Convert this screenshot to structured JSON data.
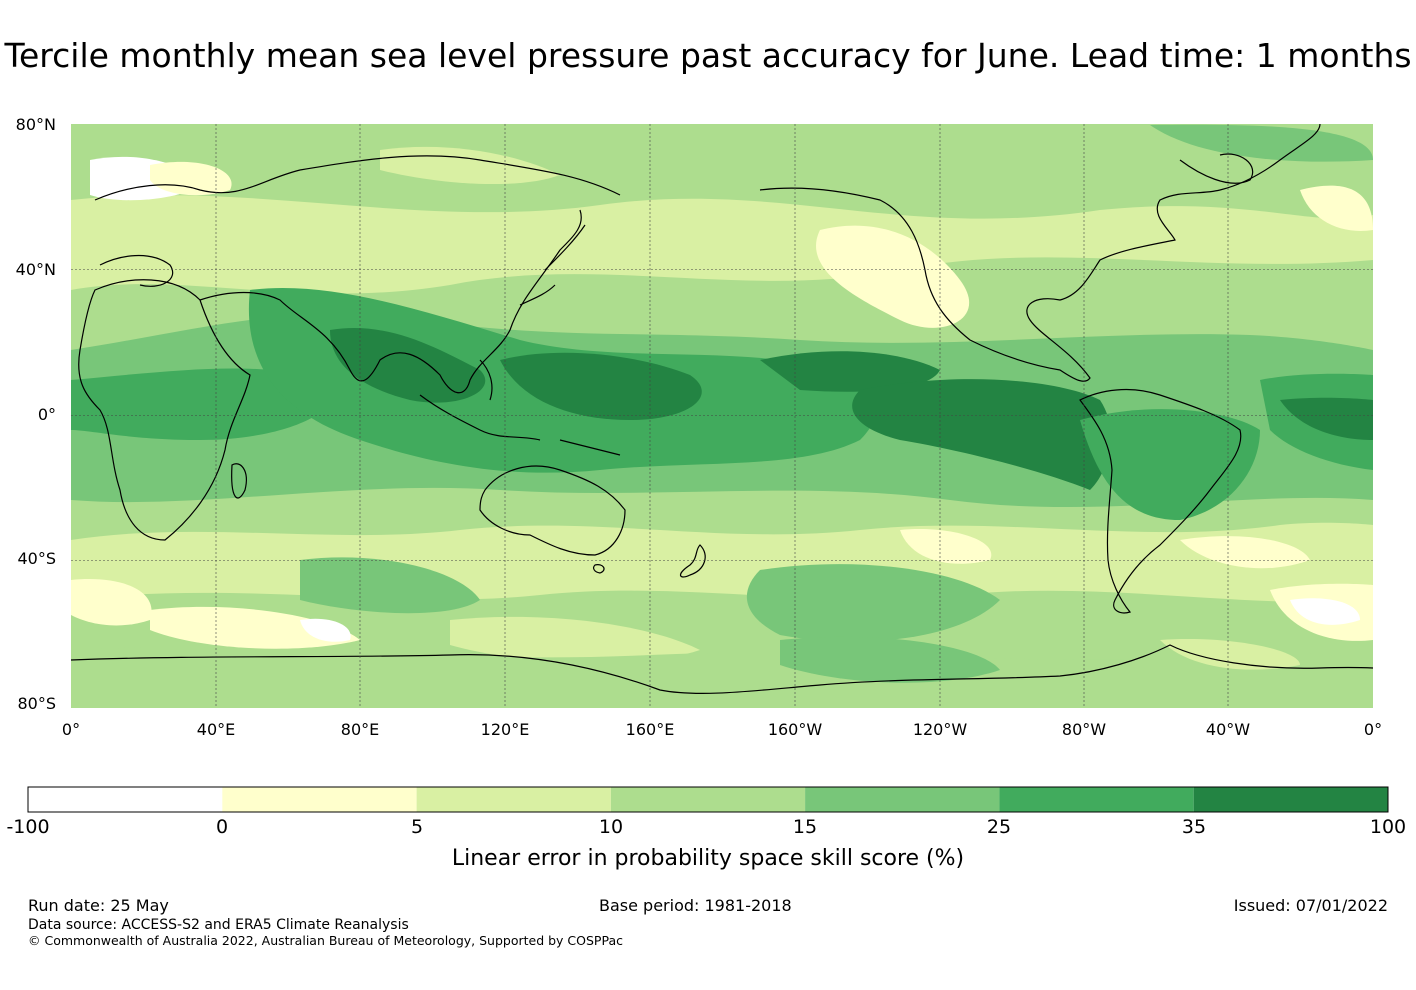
{
  "title": "Tercile monthly mean sea level pressure past accuracy for June. Lead time: 1 months",
  "axes": {
    "lat_labels": [
      "80°N",
      "40°N",
      "0°",
      "40°S",
      "80°S"
    ],
    "lon_labels": [
      "0°",
      "40°E",
      "80°E",
      "120°E",
      "160°E",
      "160°W",
      "120°W",
      "80°W",
      "40°W",
      "0°"
    ]
  },
  "colorbar": {
    "label": "Linear error in probability space skill score (%)",
    "ticks": [
      "-100",
      "0",
      "5",
      "10",
      "15",
      "25",
      "35",
      "100"
    ],
    "colors": [
      "#ffffff",
      "#ffffcc",
      "#d9f0a3",
      "#addd8e",
      "#78c679",
      "#41ab5d",
      "#238443"
    ]
  },
  "footer": {
    "run_date": "Run date: 25 May",
    "base_period": "Base period: 1981-2018",
    "issued": "Issued: 07/01/2022",
    "data_source": "Data source: ACCESS-S2 and ERA5 Climate Reanalysis",
    "copyright": "© Commonwealth of Australia 2022, Australian Bureau of Meteorology, Supported by COSPPac"
  }
}
